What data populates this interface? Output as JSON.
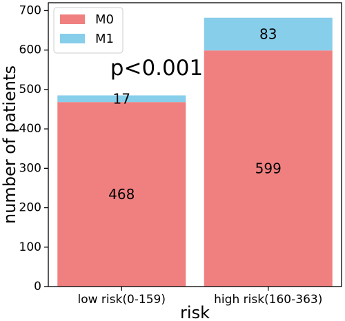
{
  "chart_data": {
    "type": "bar",
    "stacked": true,
    "categories": [
      "low risk(0-159)",
      "high risk(160-363)"
    ],
    "series": [
      {
        "name": "M0",
        "values": [
          468,
          599
        ],
        "color": "#f08080"
      },
      {
        "name": "M1",
        "values": [
          17,
          83
        ],
        "color": "#87ceeb"
      }
    ],
    "xlabel": "risk",
    "ylabel": "number of patients",
    "ylim": [
      0,
      720
    ],
    "yticks": [
      0,
      100,
      200,
      300,
      400,
      500,
      600,
      700
    ],
    "annotation": "p<0.001",
    "legend_position": "top-left",
    "grid": false
  }
}
